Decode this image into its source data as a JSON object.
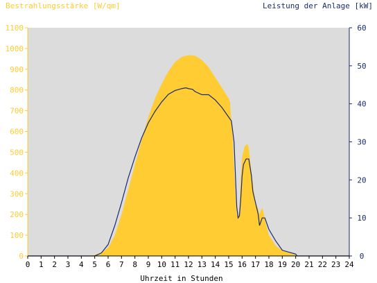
{
  "chart_data": {
    "type": "area",
    "ylabel_left": "Bestrahlungsstärke [W/qm]",
    "ylabel_right": "Leistung der Anlage [kW]",
    "xlabel": "Uhrzeit in Stunden",
    "xlim": [
      0,
      24
    ],
    "ylim_left": [
      0,
      1100
    ],
    "ylim_right": [
      0,
      60
    ],
    "xticks": [
      "0",
      "1",
      "2",
      "3",
      "4",
      "5",
      "6",
      "7",
      "8",
      "9",
      "10",
      "11",
      "12",
      "13",
      "14",
      "15",
      "16",
      "17",
      "18",
      "19",
      "20",
      "21",
      "22",
      "23",
      "24"
    ],
    "yticks_left": [
      "0",
      "100",
      "200",
      "300",
      "400",
      "500",
      "600",
      "700",
      "800",
      "900",
      "1000",
      "1100"
    ],
    "yticks_right": [
      "0",
      "10",
      "20",
      "30",
      "40",
      "50",
      "60"
    ],
    "colors": {
      "plot_background": "#dcdcdc",
      "irradiance_fill": "#ffcc33",
      "power_line": "#1a2a6c",
      "left_axis_text": "#ffcc33",
      "right_axis_text": "#1a2a6c"
    },
    "series": [
      {
        "axis": "left",
        "style": "area",
        "x": [
          0,
          4.5,
          5,
          5.5,
          6,
          6.5,
          7,
          7.5,
          8,
          8.5,
          9,
          9.5,
          10,
          10.5,
          11,
          11.5,
          12,
          12.5,
          13,
          13.5,
          14,
          14.5,
          15,
          15.1,
          15.3,
          15.5,
          15.6,
          15.7,
          15.8,
          15.9,
          16,
          16.2,
          16.4,
          16.5,
          16.6,
          16.8,
          17,
          17.2,
          17.3,
          17.4,
          17.5,
          17.6,
          17.8,
          18,
          18.5,
          19,
          19.5,
          20,
          20.3,
          21,
          24
        ],
        "y": [
          0,
          0,
          5,
          15,
          40,
          100,
          200,
          320,
          440,
          560,
          670,
          760,
          830,
          890,
          935,
          960,
          968,
          965,
          945,
          910,
          860,
          810,
          760,
          740,
          560,
          300,
          200,
          190,
          230,
          380,
          480,
          530,
          540,
          520,
          460,
          350,
          250,
          230,
          200,
          220,
          230,
          210,
          150,
          100,
          50,
          25,
          15,
          5,
          0,
          0,
          0
        ]
      },
      {
        "axis": "right",
        "style": "line",
        "x": [
          0,
          5,
          5.5,
          6,
          6.5,
          7,
          7.5,
          8,
          8.5,
          9,
          9.5,
          10,
          10.5,
          11,
          11.5,
          11.8,
          12,
          12.3,
          12.5,
          13,
          13.5,
          14,
          14.5,
          15,
          15.2,
          15.4,
          15.6,
          15.7,
          15.8,
          15.9,
          16,
          16.1,
          16.3,
          16.5,
          16.7,
          16.8,
          17,
          17.2,
          17.3,
          17.4,
          17.5,
          17.7,
          18,
          18.5,
          19,
          19.5,
          20,
          20.1,
          21,
          24
        ],
        "y": [
          0,
          0,
          0.8,
          3,
          8,
          14,
          20.5,
          26,
          31,
          35,
          38,
          40.5,
          42.5,
          43.5,
          44,
          44.2,
          44,
          43.8,
          43.2,
          42.4,
          42.4,
          41,
          39,
          36.5,
          35.5,
          30,
          13,
          10,
          10.5,
          15,
          21,
          24,
          25.5,
          25.5,
          21,
          17,
          14,
          11,
          8,
          9,
          10,
          10,
          7,
          4,
          1.5,
          1,
          0.5,
          0,
          0,
          0
        ]
      }
    ]
  }
}
